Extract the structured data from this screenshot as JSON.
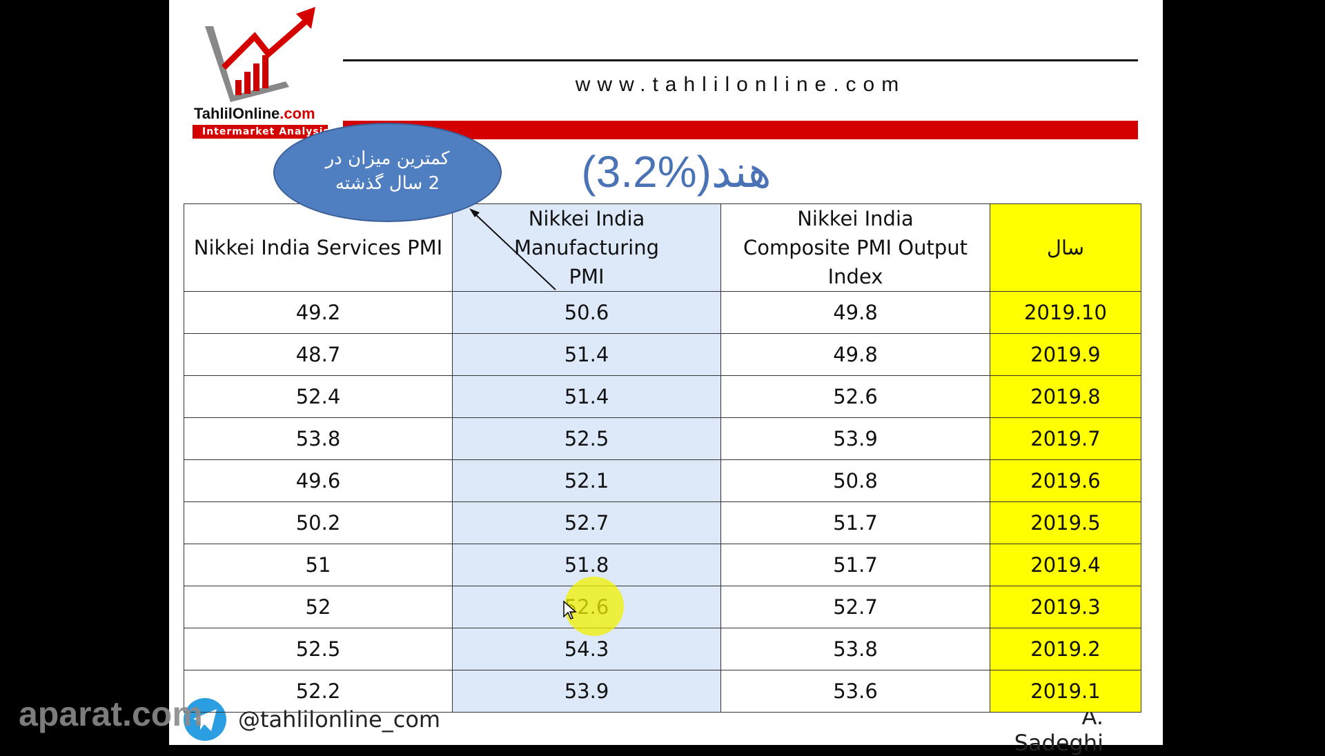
{
  "header": {
    "url": "www.tahlilonline.com",
    "logo_name_a": "TahlilOnline",
    "logo_name_b": ".com",
    "logo_tagline": "Intermarket Analysis"
  },
  "title": "هند(%3.2)",
  "callout": {
    "line1": "کمترین میزان در",
    "line2": "2 سال گذشته"
  },
  "table": {
    "headers": [
      "Nikkei India Services PMI",
      "Nikkei India Manufacturing PMI",
      "Nikkei India Composite PMI Output Index",
      "سال"
    ],
    "rows": [
      [
        "49.2",
        "50.6",
        "49.8",
        "2019.10"
      ],
      [
        "48.7",
        "51.4",
        "49.8",
        "2019.9"
      ],
      [
        "52.4",
        "51.4",
        "52.6",
        "2019.8"
      ],
      [
        "53.8",
        "52.5",
        "53.9",
        "2019.7"
      ],
      [
        "49.6",
        "52.1",
        "50.8",
        "2019.6"
      ],
      [
        "50.2",
        "52.7",
        "51.7",
        "2019.5"
      ],
      [
        "51",
        "51.8",
        "51.7",
        "2019.4"
      ],
      [
        "52",
        "52.6",
        "52.7",
        "2019.3"
      ],
      [
        "52.5",
        "54.3",
        "53.8",
        "2019.2"
      ],
      [
        "52.2",
        "53.9",
        "53.6",
        "2019.1"
      ]
    ]
  },
  "footer": {
    "telegram": "@tahlilonline_com",
    "author": "A. Sadeghi"
  },
  "watermark": "aparat.com",
  "colors": {
    "accent_red": "#d40000",
    "title_blue": "#4a73b5",
    "year_col": "#ffff00",
    "mfg_col": "#dde9f8",
    "telegram": "#2a9ee0"
  }
}
